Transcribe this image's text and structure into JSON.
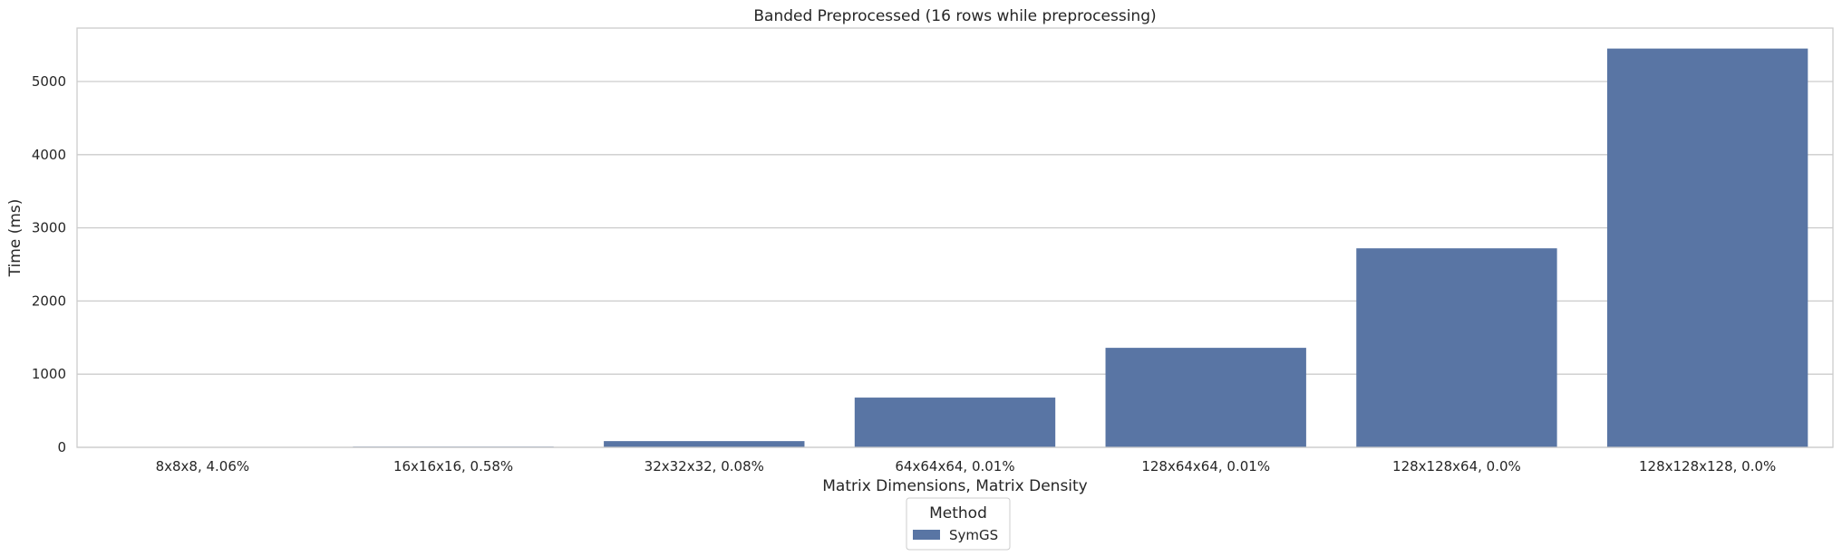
{
  "chart_data": {
    "type": "bar",
    "title": "Banded Preprocessed (16 rows while preprocessing)",
    "xlabel": "Matrix Dimensions, Matrix Density",
    "ylabel": "Time (ms)",
    "categories": [
      "8x8x8, 4.06%",
      "16x16x16, 0.58%",
      "32x32x32, 0.08%",
      "64x64x64, 0.01%",
      "128x64x64, 0.01%",
      "128x128x64, 0.0%",
      "128x128x128, 0.0%"
    ],
    "series": [
      {
        "name": "SymGS",
        "values": [
          1,
          10,
          85,
          680,
          1360,
          2720,
          5450
        ],
        "color": "#5975a4"
      }
    ],
    "ylim": [
      0,
      5730
    ],
    "yticks": [
      0,
      1000,
      2000,
      3000,
      4000,
      5000
    ],
    "grid": "horizontal",
    "legend": {
      "title": "Method",
      "placement": "bottom-center"
    }
  }
}
